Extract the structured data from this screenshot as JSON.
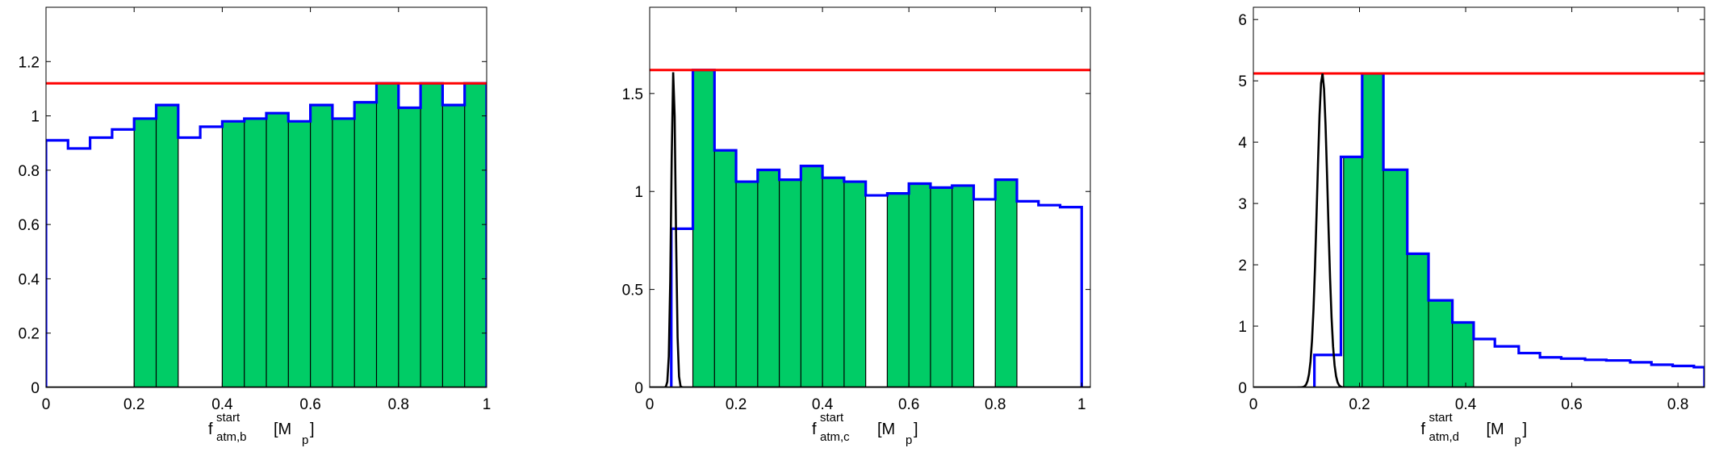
{
  "chart_data": [
    {
      "type": "histogram",
      "xlim": [
        0,
        1
      ],
      "ylim": [
        0,
        1.4
      ],
      "xticks": [
        "0",
        "0.2",
        "0.4",
        "0.6",
        "0.8",
        "1"
      ],
      "yticks": [
        "0",
        "0.2",
        "0.4",
        "0.6",
        "0.8",
        "1",
        "1.2"
      ],
      "xlabel": {
        "main": "f",
        "sup": "start",
        "sub": "atm,b",
        "unit_open": "[M",
        "unit_sub": "p",
        "unit_close": "]"
      },
      "grid": false,
      "colors": {
        "histogram": "#0000ff",
        "reference_line": "#ff0000",
        "shaded": "#00cc66"
      },
      "bin_edges": [
        0,
        0.05,
        0.1,
        0.15,
        0.2,
        0.25,
        0.3,
        0.35,
        0.4,
        0.45,
        0.5,
        0.55,
        0.6,
        0.65,
        0.7,
        0.75,
        0.8,
        0.85,
        0.9,
        0.95,
        1.0
      ],
      "bin_values": [
        0.91,
        0.88,
        0.92,
        0.95,
        0.99,
        1.04,
        0.92,
        0.96,
        0.98,
        0.99,
        1.01,
        0.98,
        1.04,
        0.99,
        1.05,
        1.12,
        1.03,
        1.12,
        1.04,
        1.12
      ],
      "reference_line": 1.12,
      "shaded_intervals": [
        [
          0.2,
          0.3
        ],
        [
          0.4,
          1.0
        ]
      ]
    },
    {
      "type": "histogram",
      "xlim": [
        0,
        1.02
      ],
      "ylim": [
        0,
        1.94
      ],
      "xticks": [
        "0",
        "0.2",
        "0.4",
        "0.6",
        "0.8",
        "1"
      ],
      "yticks": [
        "0",
        "0.5",
        "1",
        "1.5"
      ],
      "xlabel": {
        "main": "f",
        "sup": "start",
        "sub": "atm,c",
        "unit_open": "[M",
        "unit_sub": "p",
        "unit_close": "]"
      },
      "grid": false,
      "colors": {
        "histogram": "#0000ff",
        "reference_line": "#ff0000",
        "shaded": "#00cc66",
        "prior_curve": "#000000"
      },
      "bin_edges": [
        0.05,
        0.1,
        0.15,
        0.2,
        0.25,
        0.3,
        0.35,
        0.4,
        0.45,
        0.5,
        0.55,
        0.6,
        0.65,
        0.7,
        0.75,
        0.8,
        0.85,
        0.9,
        0.95,
        1.0
      ],
      "bin_values": [
        0.81,
        1.62,
        1.21,
        1.05,
        1.11,
        1.06,
        1.13,
        1.07,
        1.05,
        0.98,
        0.99,
        1.04,
        1.02,
        1.03,
        0.96,
        1.06,
        0.95,
        0.93,
        0.92
      ],
      "reference_line": 1.62,
      "shaded_intervals": [
        [
          0.1,
          0.5
        ],
        [
          0.55,
          0.75
        ],
        [
          0.8,
          0.85
        ]
      ],
      "prior_curve": {
        "mu": 0.055,
        "sigma": 0.005,
        "peak": 1.62
      }
    },
    {
      "type": "histogram",
      "xlim": [
        0,
        0.85
      ],
      "ylim": [
        0,
        6.2
      ],
      "xticks": [
        "0",
        "0.2",
        "0.4",
        "0.6",
        "0.8"
      ],
      "yticks": [
        "0",
        "1",
        "2",
        "3",
        "4",
        "5",
        "6"
      ],
      "xlabel": {
        "main": "f",
        "sup": "start",
        "sub": "atm,d",
        "unit_open": "[M",
        "unit_sub": "p",
        "unit_close": "]"
      },
      "grid": false,
      "colors": {
        "histogram": "#0000ff",
        "reference_line": "#ff0000",
        "shaded": "#00cc66",
        "prior_curve": "#000000"
      },
      "bin_edges": [
        0.115,
        0.165,
        0.205,
        0.245,
        0.29,
        0.33,
        0.375,
        0.415,
        0.455,
        0.5,
        0.54,
        0.58,
        0.625,
        0.665,
        0.71,
        0.75,
        0.79,
        0.83,
        0.85
      ],
      "bin_values": [
        0.53,
        3.76,
        5.12,
        3.55,
        2.18,
        1.42,
        1.06,
        0.79,
        0.67,
        0.56,
        0.49,
        0.47,
        0.45,
        0.44,
        0.41,
        0.37,
        0.35,
        0.33
      ],
      "reference_line": 5.12,
      "shaded_intervals": [
        [
          0.17,
          0.415
        ]
      ],
      "prior_curve": {
        "mu": 0.13,
        "sigma": 0.01,
        "peak": 5.12
      }
    }
  ]
}
